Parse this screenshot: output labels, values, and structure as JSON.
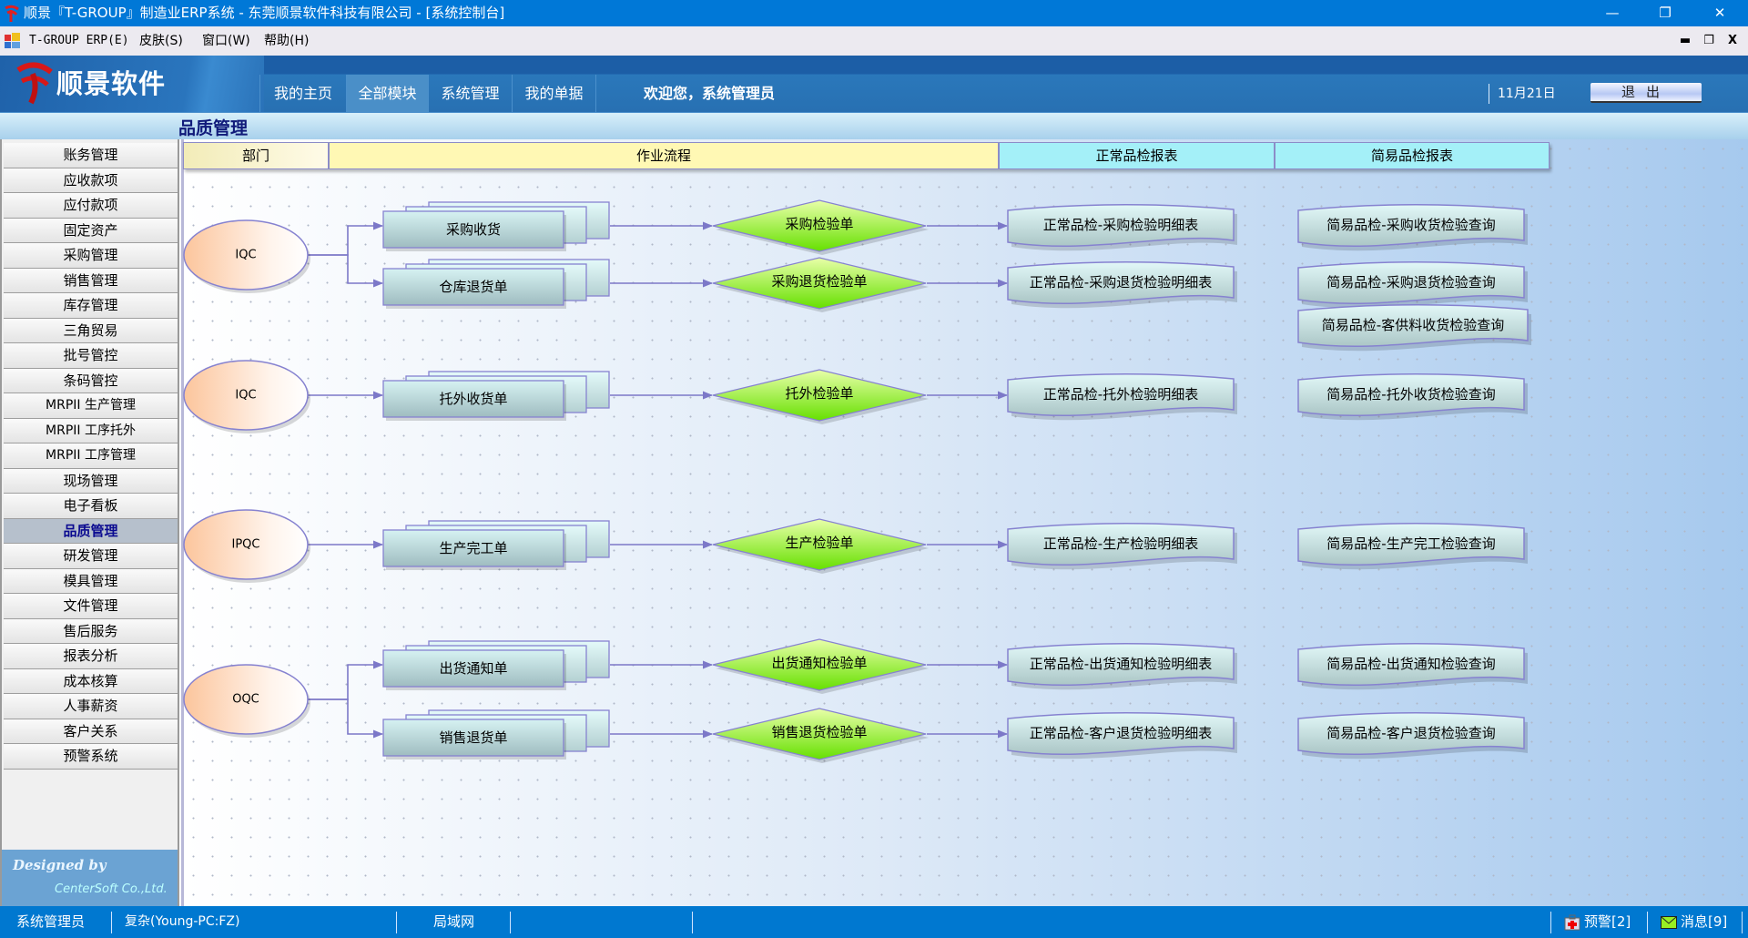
{
  "window": {
    "title": "顺景『T-GROUP』制造业ERP系统 - 东莞顺景软件科技有限公司 - [系统控制台]",
    "controls": [
      "—",
      "❐",
      "✕"
    ]
  },
  "menubar": {
    "items": [
      "T-GROUP ERP(E)",
      "皮肤(S)",
      "窗口(W)",
      "帮助(H)"
    ],
    "mdi_controls": [
      "▬",
      "❐",
      "X"
    ]
  },
  "header": {
    "logo_text": "顺景软件",
    "tabs": [
      {
        "label": "我的主页",
        "active": false
      },
      {
        "label": "全部模块",
        "active": true
      },
      {
        "label": "系统管理",
        "active": false
      },
      {
        "label": "我的单据",
        "active": false
      }
    ],
    "welcome": "欢迎您，系统管理员",
    "date": "11月21日",
    "exit_label": "退出"
  },
  "page_title": "品质管理",
  "sidebar": {
    "items": [
      "账务管理",
      "应收款项",
      "应付款项",
      "固定资产",
      "采购管理",
      "销售管理",
      "库存管理",
      "三角贸易",
      "批号管控",
      "条码管控",
      "MRPII 生产管理",
      "MRPII 工序托外",
      "MRPII 工序管理",
      "现场管理",
      "电子看板",
      "品质管理",
      "研发管理",
      "模具管理",
      "文件管理",
      "售后服务",
      "报表分析",
      "成本核算",
      "人事薪资",
      "客户关系",
      "预警系统"
    ],
    "active_index": 15,
    "designed_by": "Designed by",
    "company": "CenterSoft Co.,Ltd."
  },
  "columns": [
    "部门",
    "作业流程",
    "正常品检报表",
    "简易品检报表"
  ],
  "colors": {
    "column_dept": "#f5efc0",
    "column_flow": "#fff8b4",
    "column_report": "#a4f0f8",
    "accent": "#0078d7",
    "diamond": "#88ee22",
    "connector": "#7c78c8"
  },
  "flow": {
    "departments": [
      "IQC",
      "IQC",
      "IPQC",
      "OQC"
    ],
    "documents": [
      "采购收货",
      "仓库退货单",
      "托外收货单",
      "生产完工单",
      "出货通知单",
      "销售退货单"
    ],
    "inspections": [
      "采购检验单",
      "采购退货检验单",
      "托外检验单",
      "生产检验单",
      "出货通知检验单",
      "销售退货检验单"
    ],
    "normal_reports": [
      "正常品检-采购检验明细表",
      "正常品检-采购退货检验明细表",
      "正常品检-托外检验明细表",
      "正常品检-生产检验明细表",
      "正常品检-出货通知检验明细表",
      "正常品检-客户退货检验明细表"
    ],
    "simple_reports": [
      "简易品检-采购收货检验查询",
      "简易品检-采购退货检验查询",
      "简易品检-客供料收货检验查询",
      "简易品检-托外收货检验查询",
      "简易品检-生产完工检验查询",
      "简易品检-出货通知检验查询",
      "简易品检-客户退货检验查询"
    ]
  },
  "statusbar": {
    "user": "系统管理员",
    "database": "复杂(Young-PC:FZ)",
    "network": "局域网",
    "alerts": "预警[2]",
    "messages": "消息[9]"
  }
}
